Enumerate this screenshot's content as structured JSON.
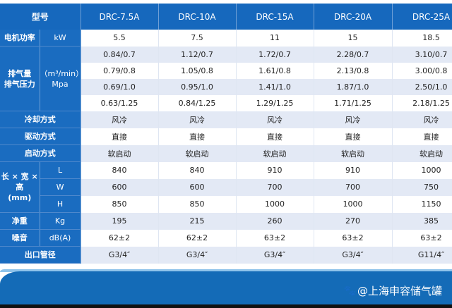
{
  "header": {
    "label": "型号",
    "models": [
      "DRC-7.5A",
      "DRC-10A",
      "DRC-15A",
      "DRC-20A",
      "DRC-25A"
    ]
  },
  "rows": [
    {
      "label": "电机功率",
      "unit": "kW",
      "values": [
        "5.5",
        "7.5",
        "11",
        "15",
        "18.5"
      ]
    },
    {
      "label": "排气量\n排气压力",
      "unit": "（m³/min）\nMpa",
      "span": 4,
      "values": [
        "0.84/0.7",
        "1.12/0.7",
        "1.72/0.7",
        "2.28/0.7",
        "3.10/0.7"
      ]
    },
    {
      "values": [
        "0.79/0.8",
        "1.05/0.8",
        "1.61/0.8",
        "2.13/0.8",
        "3.00/0.8"
      ]
    },
    {
      "values": [
        "0.69/1.0",
        "0.95/1.0",
        "1.41/1.0",
        "1.87/1.0",
        "2.50/1.0"
      ]
    },
    {
      "values": [
        "0.63/1.25",
        "0.84/1.25",
        "1.29/1.25",
        "1.71/1.25",
        "2.18/1.25"
      ]
    },
    {
      "label": "冷却方式",
      "full": true,
      "values": [
        "风冷",
        "风冷",
        "风冷",
        "风冷",
        "风冷"
      ]
    },
    {
      "label": "驱动方式",
      "full": true,
      "values": [
        "直接",
        "直接",
        "直接",
        "直接",
        "直接"
      ]
    },
    {
      "label": "启动方式",
      "full": true,
      "values": [
        "软启动",
        "软启动",
        "软启动",
        "软启动",
        "软启动"
      ]
    },
    {
      "label": "长 × 宽 ×\n高\n(mm)",
      "unit": "L",
      "span": 3,
      "values": [
        "840",
        "840",
        "910",
        "910",
        "1000"
      ]
    },
    {
      "unit": "W",
      "values": [
        "600",
        "600",
        "700",
        "700",
        "750"
      ]
    },
    {
      "unit": "H",
      "values": [
        "850",
        "850",
        "1000",
        "1000",
        "1150"
      ]
    },
    {
      "label": "净重",
      "unit": "Kg",
      "values": [
        "195",
        "215",
        "260",
        "270",
        "385"
      ]
    },
    {
      "label": "噪音",
      "unit": "dB(A)",
      "values": [
        "62±2",
        "62±2",
        "63±2",
        "63±2",
        "63±2"
      ]
    },
    {
      "label": "出口管径",
      "full": true,
      "values": [
        "G3/4″",
        "G3/4″",
        "G3/4″",
        "G3/4″",
        "G11/4″"
      ]
    }
  ],
  "watermark": {
    "icon": "paw-icon",
    "text": "@上海申容储气罐"
  },
  "colors": {
    "header": "#1668bd",
    "alt_row": "#e3e9f5",
    "band": "#146bb7"
  }
}
